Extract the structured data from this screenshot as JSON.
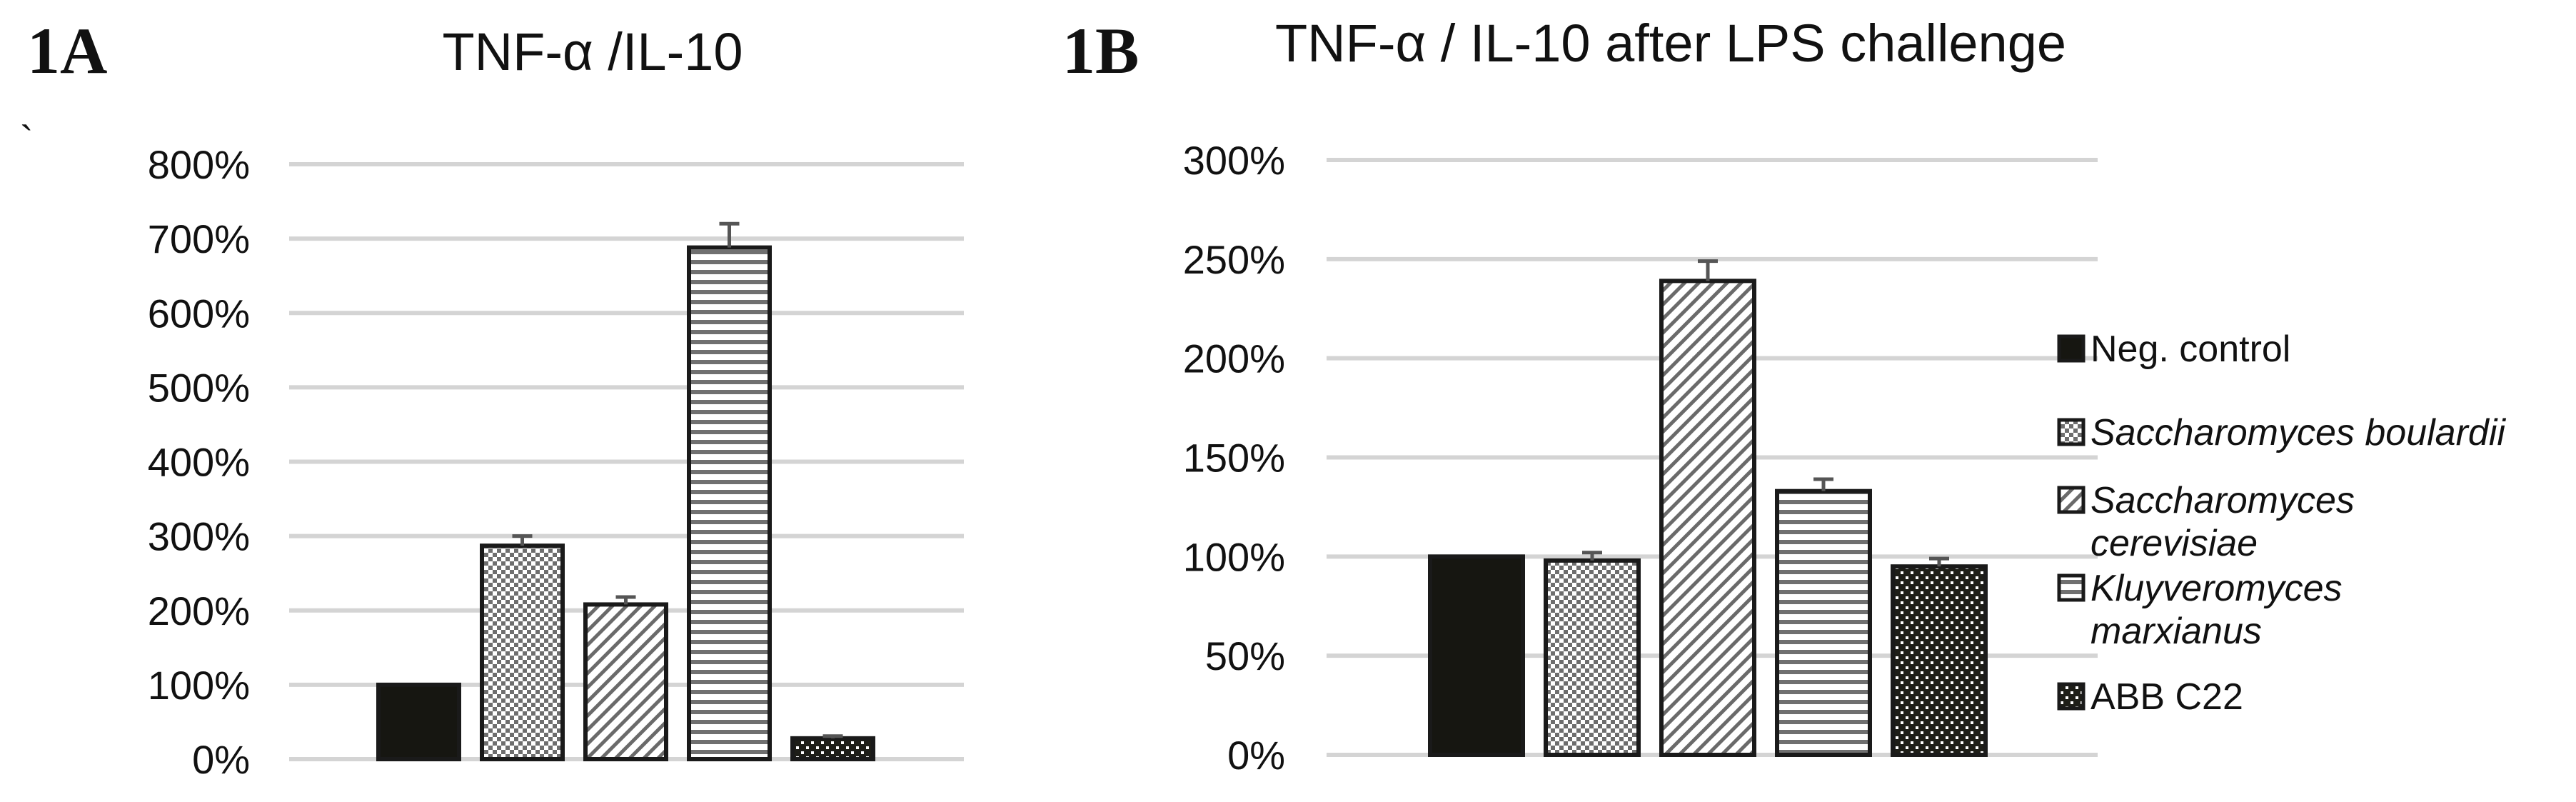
{
  "panel_labels": [
    "1A",
    "1B"
  ],
  "stray_mark": "`",
  "legend": {
    "items": [
      {
        "label": "Neg. control",
        "lines": [
          "Neg. control"
        ],
        "italic": false,
        "pattern": "solid"
      },
      {
        "label": "Saccharomyces boulardii",
        "lines": [
          "Saccharomyces boulardii"
        ],
        "italic": true,
        "pattern": "checker"
      },
      {
        "label": "Saccharomyces cerevisiae",
        "lines": [
          "Saccharomyces",
          "cerevisiae"
        ],
        "italic": true,
        "pattern": "diagonal"
      },
      {
        "label": "Kluyveromyces marxianus",
        "lines": [
          "Kluyveromyces",
          "marxianus"
        ],
        "italic": true,
        "pattern": "horizontal"
      },
      {
        "label": "ABB C22",
        "lines": [
          "ABB C22"
        ],
        "italic": false,
        "pattern": "dots"
      }
    ]
  },
  "chart_data": [
    {
      "type": "bar",
      "title": "TNF-α /IL-10",
      "xlabel": "",
      "ylabel": "",
      "ylim": [
        0,
        800
      ],
      "yticks": [
        "0%",
        "100%",
        "200%",
        "300%",
        "400%",
        "500%",
        "600%",
        "700%",
        "800%"
      ],
      "grid": true,
      "categories": [
        "Neg. control",
        "Saccharomyces boulardii",
        "Saccharomyces cerevisiae",
        "Kluyveromyces marxianus",
        "ABB C22"
      ],
      "values": [
        100,
        287,
        208,
        688,
        28
      ],
      "errors": [
        0,
        13,
        10,
        32,
        3
      ],
      "patterns": [
        "solid",
        "checker",
        "diagonal",
        "horizontal",
        "dots"
      ]
    },
    {
      "type": "bar",
      "title": "TNF-α / IL-10 after LPS challenge",
      "xlabel": "",
      "ylabel": "",
      "ylim": [
        0,
        300
      ],
      "yticks": [
        "0%",
        "50%",
        "100%",
        "150%",
        "200%",
        "250%",
        "300%"
      ],
      "grid": true,
      "legend_position": "right",
      "categories": [
        "Neg. control",
        "Saccharomyces boulardii",
        "Saccharomyces cerevisiae",
        "Kluyveromyces marxianus",
        "ABB C22"
      ],
      "values": [
        100,
        98,
        239,
        133,
        95
      ],
      "errors": [
        0,
        4,
        10,
        6,
        4
      ],
      "patterns": [
        "solid",
        "checker",
        "diagonal",
        "horizontal",
        "dots"
      ]
    }
  ]
}
